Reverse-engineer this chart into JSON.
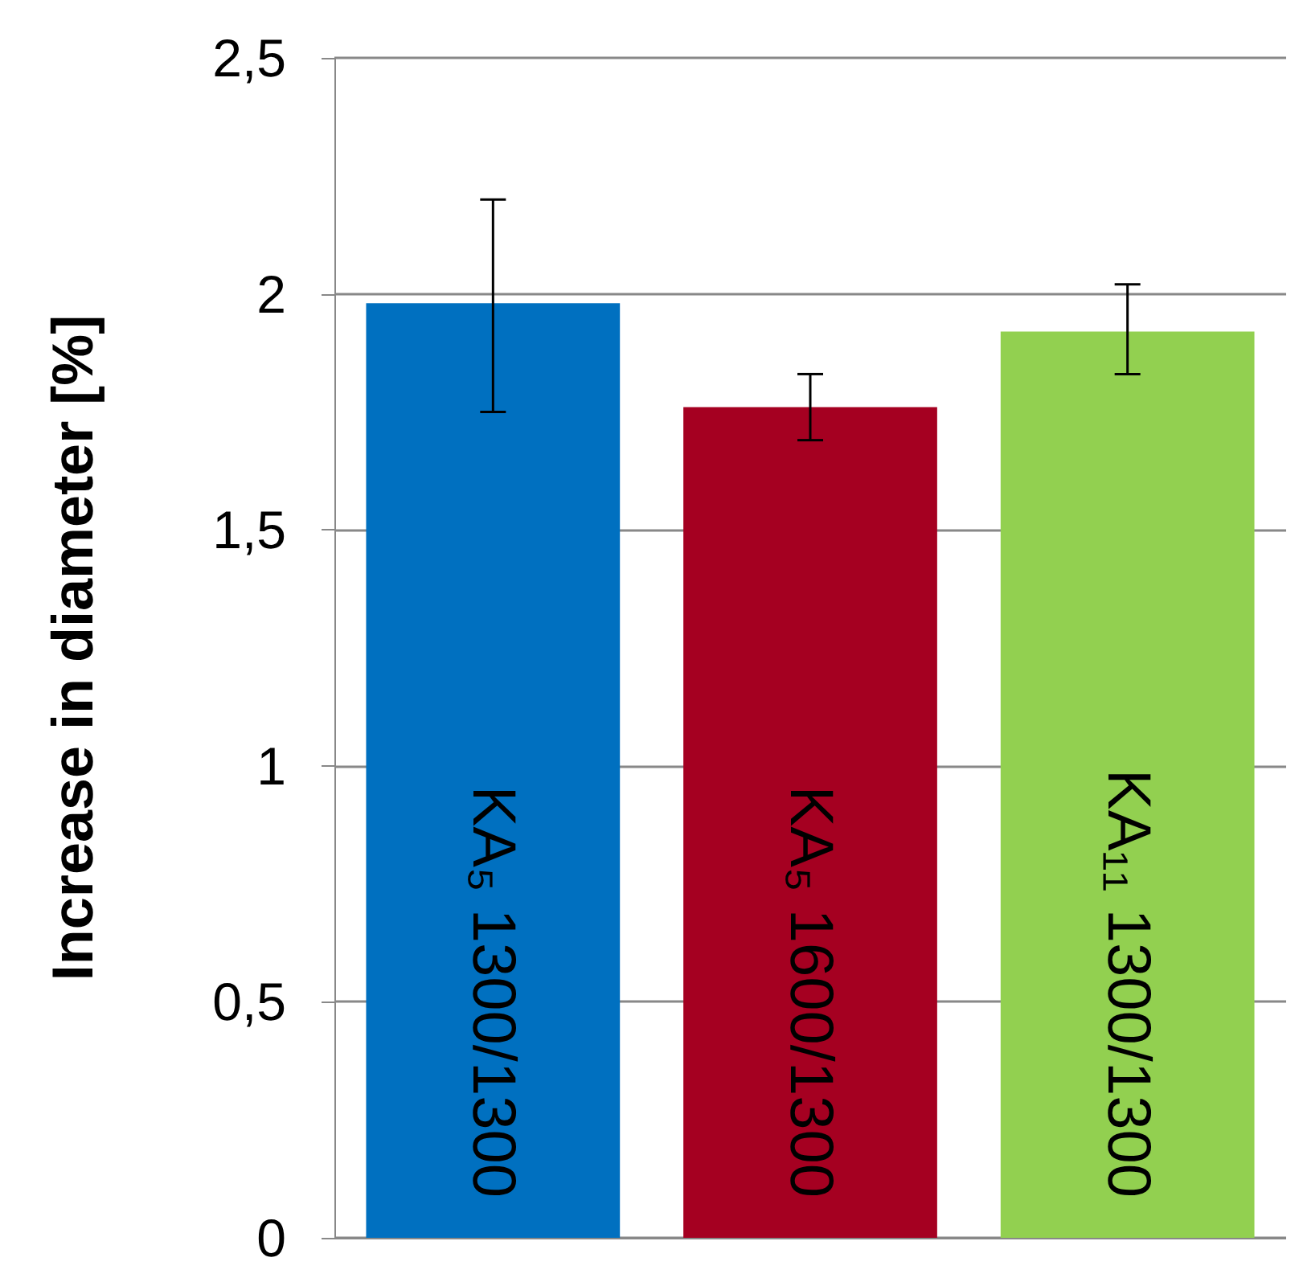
{
  "chart_data": {
    "type": "bar",
    "ylabel": "Increase in diameter [%]",
    "categories": [
      "KA₅ 1300/1300",
      "KA₅ 1600/1300",
      "KA₁₁ 1300/1300"
    ],
    "values": [
      1.98,
      1.76,
      1.92
    ],
    "colors": [
      "#0070c0",
      "#a50021",
      "#92d050"
    ],
    "errors": [
      [
        1.75,
        2.2
      ],
      [
        1.69,
        1.83
      ],
      [
        1.83,
        2.02
      ]
    ],
    "ylim": [
      0,
      2.5
    ],
    "yticks": [
      0,
      {
        "value": 0.5,
        "label": "0,5"
      },
      1,
      {
        "value": 1.5,
        "label": "1,5"
      },
      2,
      {
        "value": 2.5,
        "label": "2,5"
      }
    ],
    "grid": "y"
  }
}
